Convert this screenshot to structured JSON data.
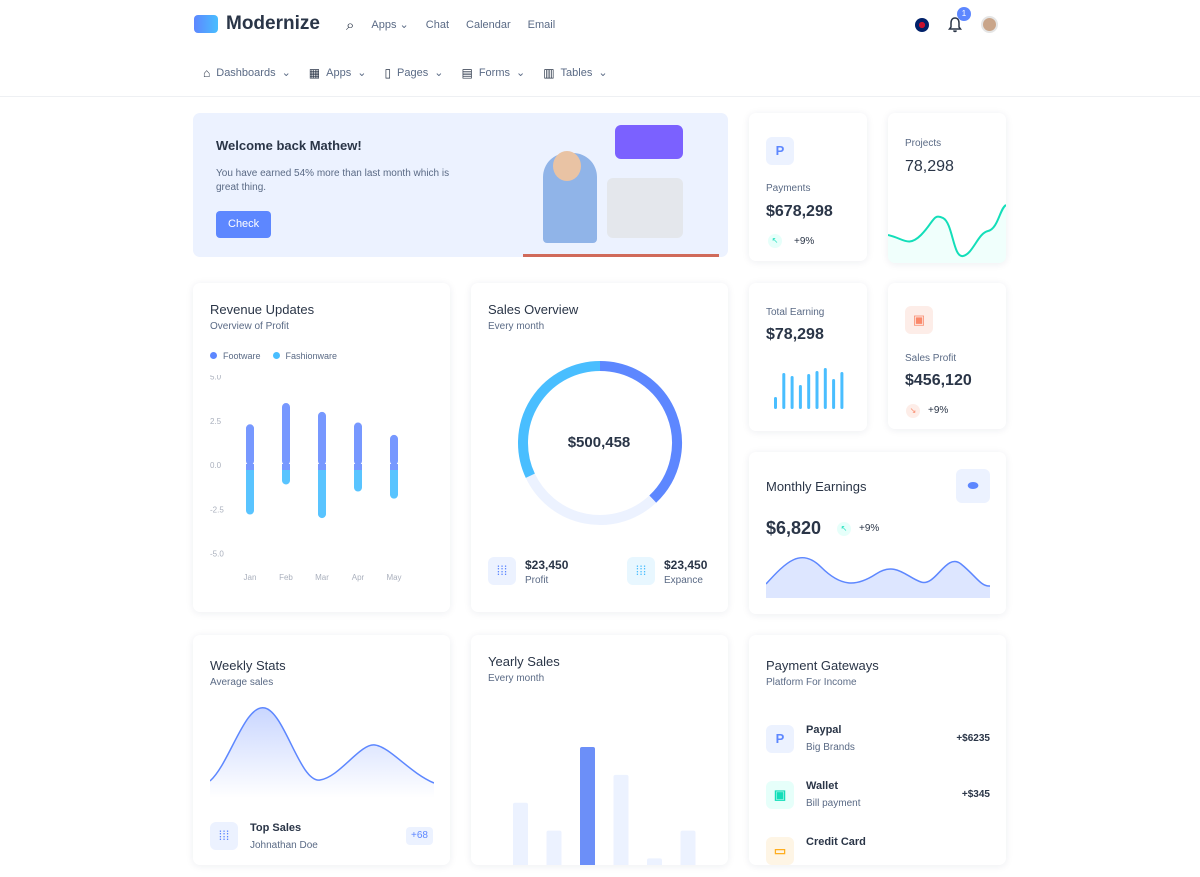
{
  "header": {
    "brand": "Modernize",
    "nav": [
      "Apps",
      "Chat",
      "Calendar",
      "Email"
    ],
    "notifications": "1"
  },
  "menu": [
    {
      "label": "Dashboards",
      "icon": "home-icon"
    },
    {
      "label": "Apps",
      "icon": "apps-icon"
    },
    {
      "label": "Pages",
      "icon": "clipboard-icon"
    },
    {
      "label": "Forms",
      "icon": "file-icon"
    },
    {
      "label": "Tables",
      "icon": "table-icon"
    }
  ],
  "welcome": {
    "title": "Welcome back Mathew!",
    "text": "You have earned 54% more than last month which is great thing.",
    "button": "Check"
  },
  "payments": {
    "label": "Payments",
    "value": "$678,298",
    "change": "+9%"
  },
  "projects": {
    "label": "Projects",
    "value": "78,298"
  },
  "total_earning": {
    "label": "Total Earning",
    "value": "$78,298"
  },
  "sales_profit": {
    "label": "Sales Profit",
    "value": "$456,120",
    "change": "+9%"
  },
  "revenue": {
    "title": "Revenue Updates",
    "subtitle": "Overview of Profit"
  },
  "sales_overview": {
    "title": "Sales Overview",
    "subtitle": "Every month",
    "total": "$500,458",
    "profit": {
      "value": "$23,450",
      "label": "Profit"
    },
    "expense": {
      "value": "$23,450",
      "label": "Expance"
    }
  },
  "monthly": {
    "title": "Monthly Earnings",
    "value": "$6,820",
    "change": "+9%"
  },
  "weekly": {
    "title": "Weekly Stats",
    "subtitle": "Average sales",
    "top_sales": {
      "title": "Top Sales",
      "name": "Johnathan Doe",
      "badge": "+68"
    }
  },
  "yearly": {
    "title": "Yearly Sales",
    "subtitle": "Every month"
  },
  "gateways": {
    "title": "Payment Gateways",
    "subtitle": "Platform For Income",
    "items": [
      {
        "name": "Paypal",
        "desc": "Big Brands",
        "amount": "+$6235"
      },
      {
        "name": "Wallet",
        "desc": "Bill payment",
        "amount": "+$345"
      },
      {
        "name": "Credit Card",
        "desc": "",
        "amount": ""
      }
    ]
  },
  "colors": {
    "primary": "#5d87ff",
    "secondary": "#49beff",
    "success": "#13deb9",
    "error": "#fa896b"
  },
  "chart_data": [
    {
      "type": "bar",
      "title": "Revenue Updates",
      "categories": [
        "Jan",
        "Feb",
        "Mar",
        "Apr",
        "May"
      ],
      "ylim": [
        -5,
        5
      ],
      "yticks": [
        "5.0",
        "2.5",
        "0.0",
        "-2.5",
        "-5.0"
      ],
      "legend": "top-left",
      "series": [
        {
          "name": "Footware",
          "values": [
            2.3,
            3.5,
            3.0,
            2.4,
            1.7
          ]
        },
        {
          "name": "Fashionware",
          "values": [
            -2.8,
            -1.1,
            -3.0,
            -1.5,
            -1.9
          ]
        }
      ]
    },
    {
      "type": "pie",
      "title": "Sales Overview",
      "values": [
        38,
        30,
        32
      ]
    },
    {
      "type": "bar",
      "title": "Yearly Sales",
      "values": [
        40,
        25,
        70,
        55,
        10,
        25
      ],
      "highlight": 2
    }
  ]
}
